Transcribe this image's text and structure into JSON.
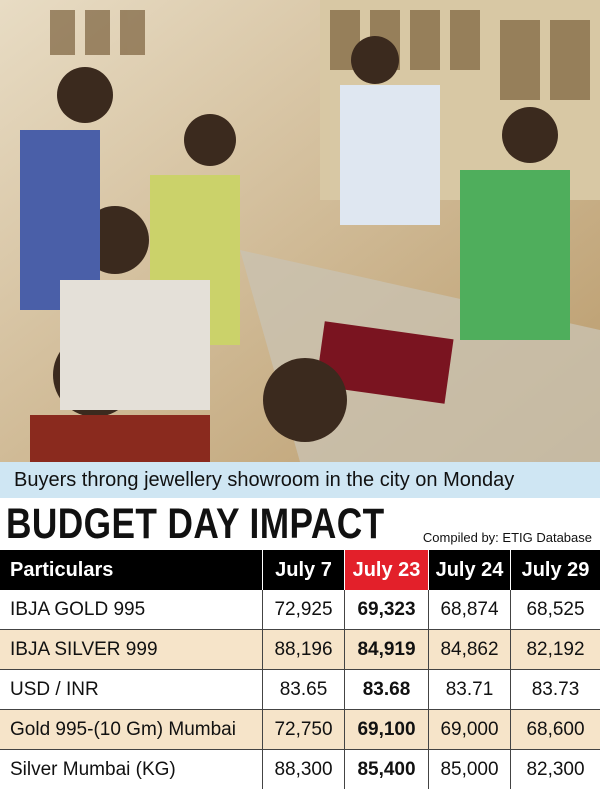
{
  "photo_caption": "Buyers throng jewellery showroom in the city on Monday",
  "title": "BUDGET DAY IMPACT",
  "credit": "Compiled by: ETIG Database",
  "table": {
    "header": [
      "Particulars",
      "July 7",
      "July 23",
      "July 24",
      "July 29"
    ],
    "rows": [
      [
        "IBJA GOLD 995",
        "72,925",
        "69,323",
        "68,874",
        "68,525"
      ],
      [
        "IBJA SILVER 999",
        "88,196",
        "84,919",
        "84,862",
        "82,192"
      ],
      [
        "USD / INR",
        "83.65",
        "83.68",
        "83.71",
        "83.73"
      ],
      [
        "Gold 995-(10 Gm) Mumbai",
        "72,750",
        "69,100",
        "69,000",
        "68,600"
      ],
      [
        "Silver Mumbai (KG)",
        "88,300",
        "85,400",
        "85,000",
        "82,300"
      ]
    ]
  }
}
